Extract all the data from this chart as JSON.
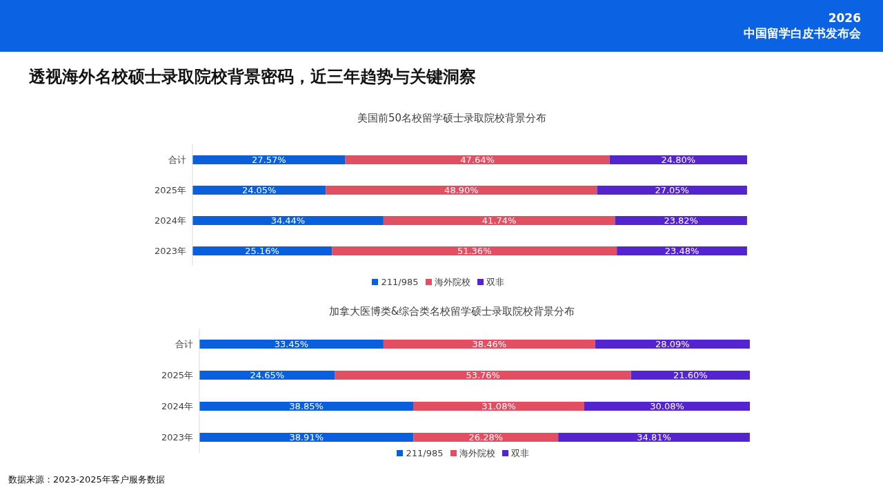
{
  "chart_data": [
    {
      "type": "other",
      "title": "透视海外名校硕士录取院校背景密码，近三年趋势与关键洞察",
      "annotations": [
        "2026",
        "中国留学白皮书发布会"
      ]
    },
    {
      "type": "bar",
      "orientation": "horizontal",
      "stacked": true,
      "title": "美国前50名校留学硕士录取院校背景分布",
      "categories": [
        "合计",
        "2025年",
        "2024年",
        "2023年"
      ],
      "series": [
        {
          "name": "211/985",
          "color": "#0a5fdd",
          "values": [
            27.57,
            24.05,
            34.44,
            25.16
          ],
          "value_labels": [
            "27.57%",
            "24.05%",
            "34.44%",
            "25.16%"
          ]
        },
        {
          "name": "海外院校",
          "color": "#e24f63",
          "values": [
            47.64,
            48.9,
            41.74,
            51.36
          ],
          "value_labels": [
            "47.64%",
            "48.90%",
            "41.74%",
            "51.36%"
          ]
        },
        {
          "name": "双非",
          "color": "#5424cf",
          "values": [
            24.8,
            27.05,
            23.82,
            23.48
          ],
          "value_labels": [
            "24.80%",
            "27.05%",
            "23.82%",
            "23.48%"
          ]
        }
      ],
      "legend": "bottom",
      "tick_labels": "y"
    },
    {
      "type": "bar",
      "orientation": "horizontal",
      "stacked": true,
      "title": "加拿大医博类&综合类名校留学硕士录取院校背景分布",
      "categories": [
        "合计",
        "2025年",
        "2024年",
        "2023年"
      ],
      "series": [
        {
          "name": "211/985",
          "color": "#0a5fdd",
          "values": [
            33.45,
            24.65,
            38.85,
            38.91
          ],
          "value_labels": [
            "33.45%",
            "24.65%",
            "38.85%",
            "38.91%"
          ]
        },
        {
          "name": "海外院校",
          "color": "#e24f63",
          "values": [
            38.46,
            53.76,
            31.08,
            26.28
          ],
          "value_labels": [
            "38.46%",
            "53.76%",
            "31.08%",
            "26.28%"
          ]
        },
        {
          "name": "双非",
          "color": "#5424cf",
          "values": [
            28.09,
            21.6,
            30.08,
            34.81
          ],
          "value_labels": [
            "28.09%",
            "21.60%",
            "30.08%",
            "34.81%"
          ]
        }
      ],
      "legend": "bottom",
      "tick_labels": "y",
      "annotations": [
        "数据来源：2023-2025年客户服务数据"
      ]
    }
  ]
}
